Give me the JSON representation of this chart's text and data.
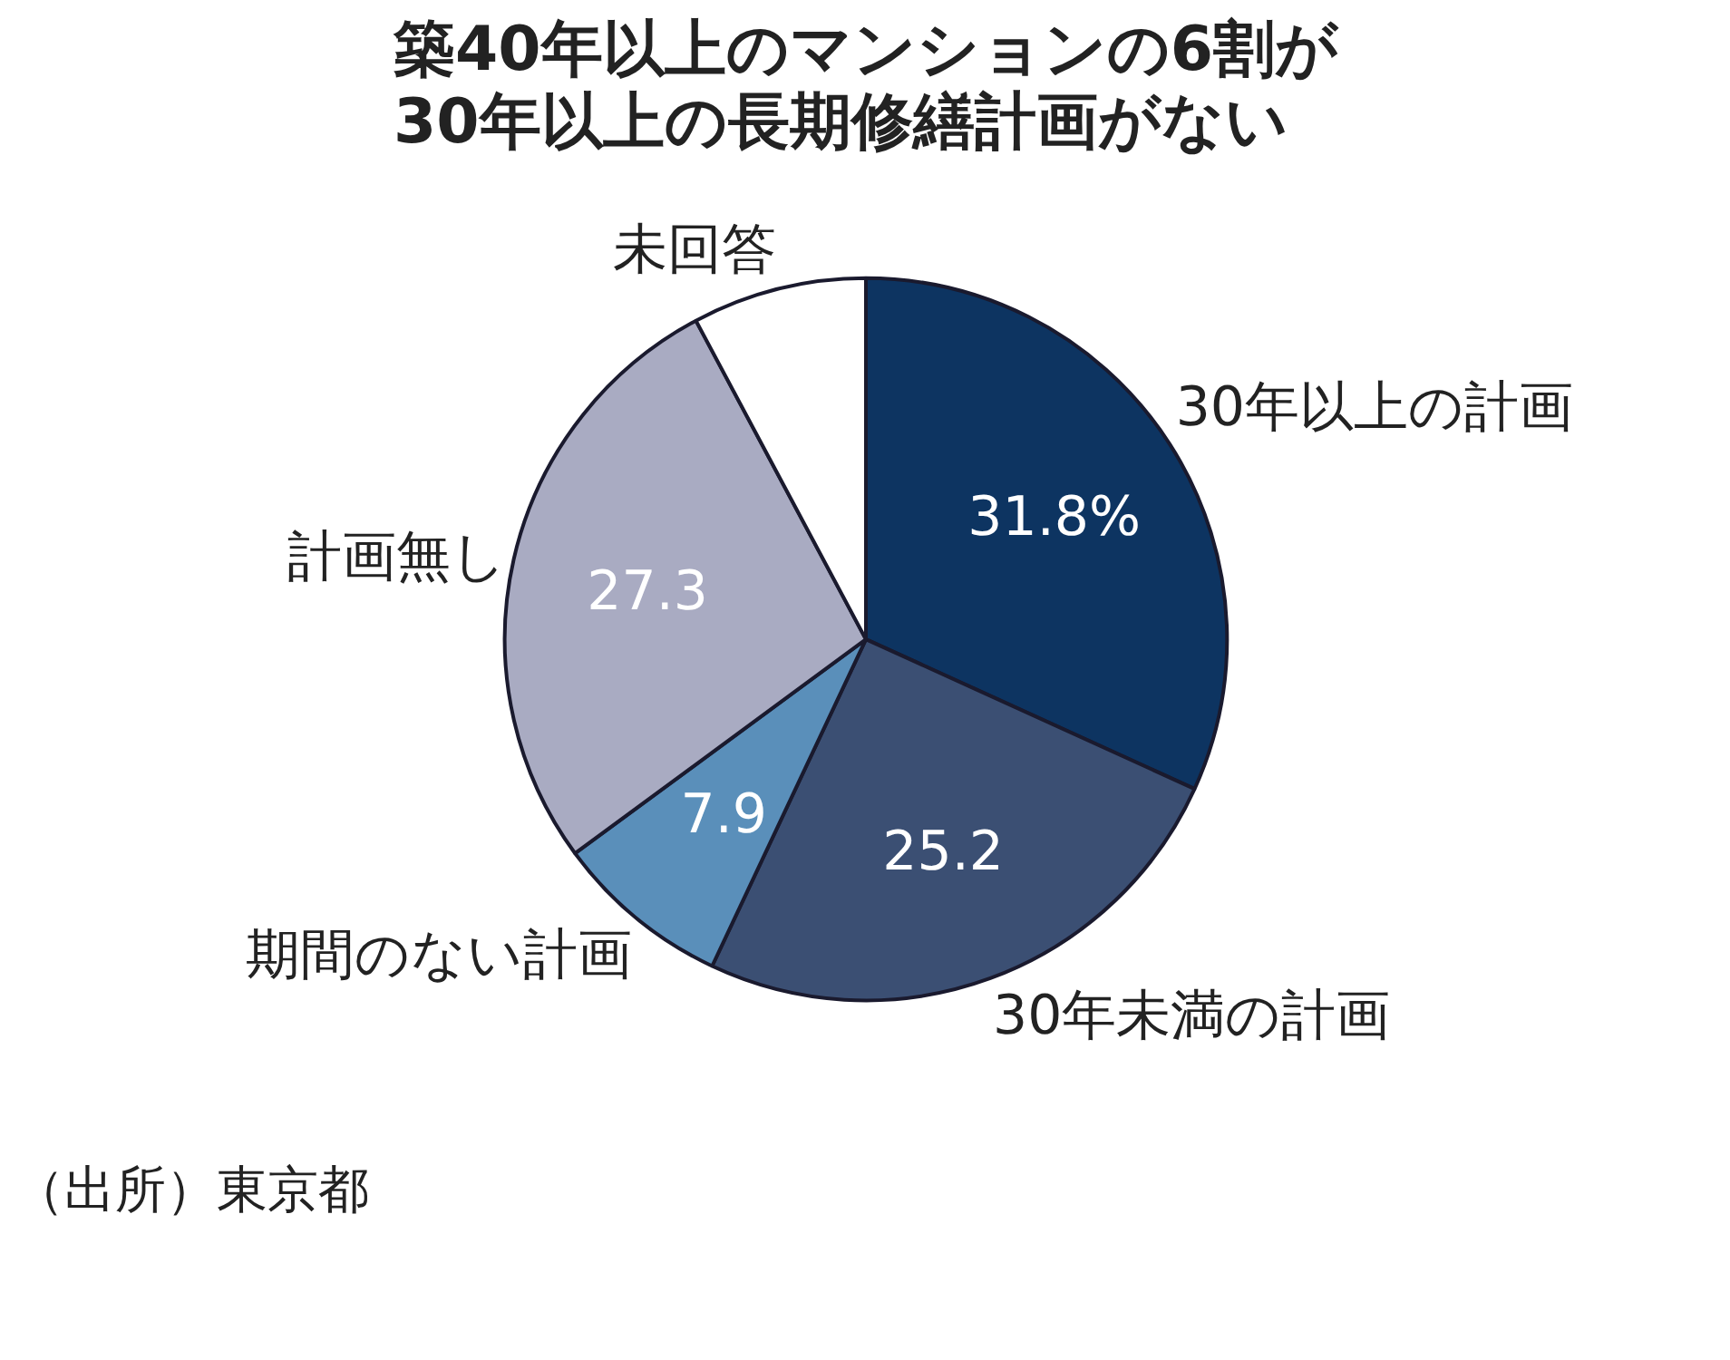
{
  "chart_data": {
    "type": "pie",
    "title": "築40年以上のマンションの6割が\n30年以上の長期修繕計画がない",
    "categories": [
      "30年以上の計画",
      "30年未満の計画",
      "期間のない計画",
      "計画無し",
      "未回答"
    ],
    "values": [
      31.8,
      25.2,
      7.9,
      27.3,
      7.8
    ],
    "value_labels": [
      "31.8%",
      "25.2",
      "7.9",
      "27.3",
      null
    ],
    "colors": [
      "#0d3461",
      "#3b4f73",
      "#5a8fba",
      "#a9abc2",
      "#ffffff"
    ],
    "annotations": [
      "（出所）東京都"
    ]
  }
}
